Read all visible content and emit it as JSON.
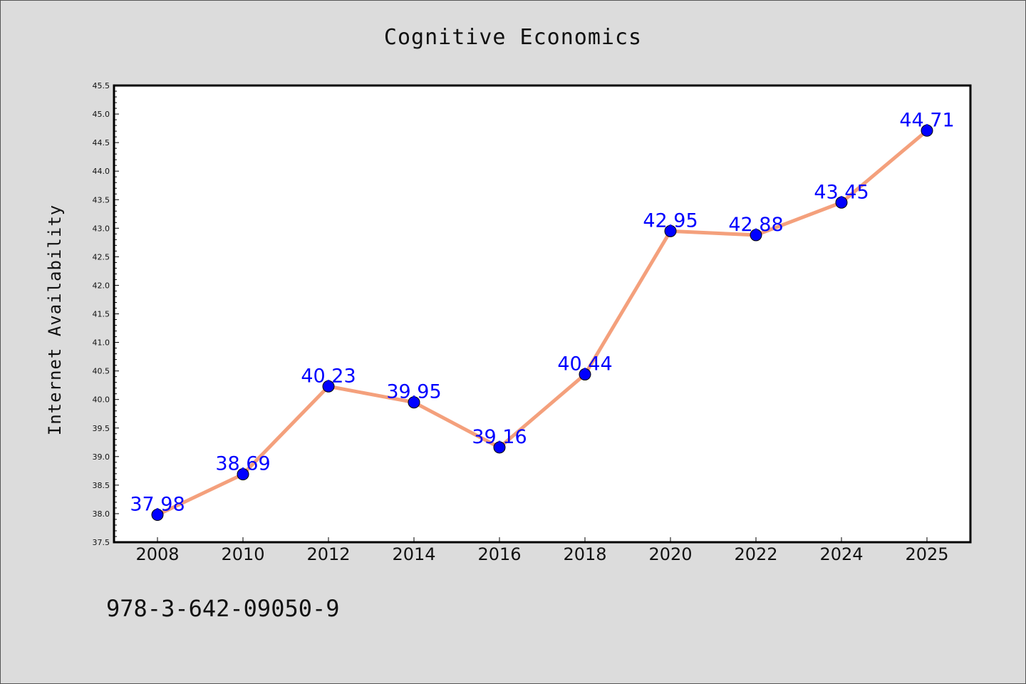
{
  "chart_data": {
    "type": "line",
    "title": "Cognitive Economics",
    "xlabel": "",
    "ylabel": "Internet Availability",
    "categories": [
      "2008",
      "2010",
      "2012",
      "2014",
      "2016",
      "2018",
      "2020",
      "2022",
      "2024",
      "2025"
    ],
    "series": [
      {
        "values": [
          37.98,
          38.69,
          40.23,
          39.95,
          39.16,
          40.44,
          42.95,
          42.88,
          43.45,
          44.71
        ],
        "labels": [
          "37.98",
          "38.69",
          "40.23",
          "39.95",
          "39.16",
          "40.44",
          "42.95",
          "42.88",
          "43.45",
          "44.71"
        ],
        "line_color": "#f4a07c",
        "marker_color": "#0000ff"
      }
    ],
    "yticks": [
      "37.5",
      "38.0",
      "38.5",
      "39.0",
      "39.5",
      "40.0",
      "40.5",
      "41.0",
      "41.5",
      "42.0",
      "42.5",
      "43.0",
      "43.5",
      "44.0",
      "44.5",
      "45.0",
      "45.5"
    ],
    "ylim": [
      37.5,
      45.5
    ],
    "grid": false,
    "legend": "none"
  },
  "footer": {
    "code": "978-3-642-09050-9"
  },
  "colors": {
    "background": "#dcdcdc",
    "plot_background": "#ffffff",
    "line": "#f4a07c",
    "marker": "#0000ff",
    "data_label": "#0000ff"
  }
}
